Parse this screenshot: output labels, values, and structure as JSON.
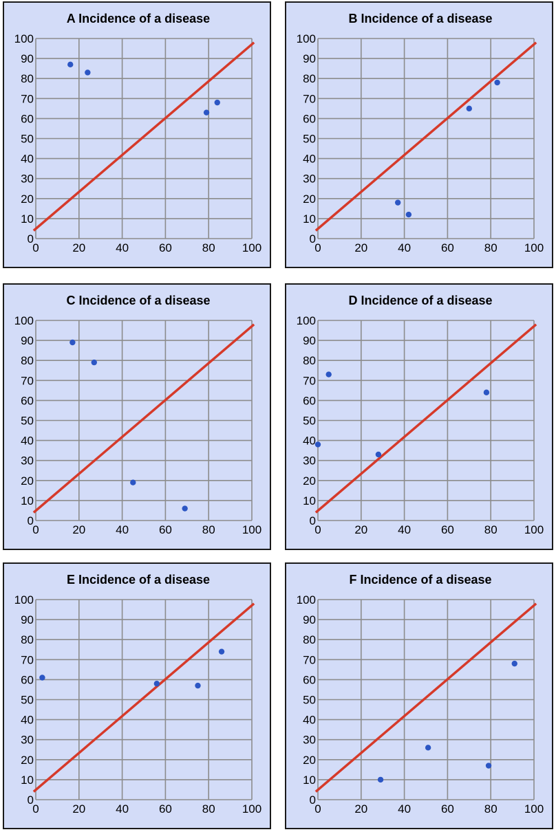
{
  "chart_data": [
    {
      "type": "scatter",
      "panel": "A",
      "title": "A Incidence of a disease",
      "xlim": [
        0,
        100
      ],
      "ylim": [
        0,
        100
      ],
      "x_ticks": [
        "0",
        "20",
        "40",
        "60",
        "80",
        "100"
      ],
      "y_ticks": [
        "0",
        "10",
        "20",
        "30",
        "40",
        "50",
        "60",
        "70",
        "80",
        "90",
        "100"
      ],
      "grid": true,
      "points": [
        {
          "x": 16,
          "y": 87
        },
        {
          "x": 24,
          "y": 83
        },
        {
          "x": 79,
          "y": 63
        },
        {
          "x": 84,
          "y": 68
        }
      ],
      "line": {
        "x": [
          -1,
          101
        ],
        "y": [
          4,
          98
        ],
        "color": "#d63a2a"
      },
      "marker_color": "#2c56c4"
    },
    {
      "type": "scatter",
      "panel": "B",
      "title": "B Incidence of a disease",
      "xlim": [
        0,
        100
      ],
      "ylim": [
        0,
        100
      ],
      "x_ticks": [
        "0",
        "20",
        "40",
        "60",
        "80",
        "100"
      ],
      "y_ticks": [
        "0",
        "10",
        "20",
        "30",
        "40",
        "50",
        "60",
        "70",
        "80",
        "90",
        "100"
      ],
      "grid": true,
      "points": [
        {
          "x": 37,
          "y": 18
        },
        {
          "x": 42,
          "y": 12
        },
        {
          "x": 70,
          "y": 65
        },
        {
          "x": 83,
          "y": 78
        }
      ],
      "line": {
        "x": [
          -1,
          101
        ],
        "y": [
          4,
          98
        ],
        "color": "#d63a2a"
      },
      "marker_color": "#2c56c4"
    },
    {
      "type": "scatter",
      "panel": "C",
      "title": "C Incidence of a disease",
      "xlim": [
        0,
        100
      ],
      "ylim": [
        0,
        100
      ],
      "x_ticks": [
        "0",
        "20",
        "40",
        "60",
        "80",
        "100"
      ],
      "y_ticks": [
        "0",
        "10",
        "20",
        "30",
        "40",
        "50",
        "60",
        "70",
        "80",
        "90",
        "100"
      ],
      "grid": true,
      "points": [
        {
          "x": 17,
          "y": 89
        },
        {
          "x": 27,
          "y": 79
        },
        {
          "x": 45,
          "y": 19
        },
        {
          "x": 69,
          "y": 6
        }
      ],
      "line": {
        "x": [
          -1,
          101
        ],
        "y": [
          4,
          98
        ],
        "color": "#d63a2a"
      },
      "marker_color": "#2c56c4"
    },
    {
      "type": "scatter",
      "panel": "D",
      "title": "D Incidence of a disease",
      "xlim": [
        0,
        100
      ],
      "ylim": [
        0,
        100
      ],
      "x_ticks": [
        "0",
        "20",
        "40",
        "60",
        "80",
        "100"
      ],
      "y_ticks": [
        "0",
        "10",
        "20",
        "30",
        "40",
        "50",
        "60",
        "70",
        "80",
        "90",
        "100"
      ],
      "grid": true,
      "points": [
        {
          "x": 0,
          "y": 38
        },
        {
          "x": 5,
          "y": 73
        },
        {
          "x": 28,
          "y": 33
        },
        {
          "x": 78,
          "y": 64
        }
      ],
      "line": {
        "x": [
          -1,
          101
        ],
        "y": [
          4,
          98
        ],
        "color": "#d63a2a"
      },
      "marker_color": "#2c56c4"
    },
    {
      "type": "scatter",
      "panel": "E",
      "title": "E Incidence of a disease",
      "xlim": [
        0,
        100
      ],
      "ylim": [
        0,
        100
      ],
      "x_ticks": [
        "0",
        "20",
        "40",
        "60",
        "80",
        "100"
      ],
      "y_ticks": [
        "0",
        "10",
        "20",
        "30",
        "40",
        "50",
        "60",
        "70",
        "80",
        "90",
        "100"
      ],
      "grid": true,
      "points": [
        {
          "x": 3,
          "y": 61
        },
        {
          "x": 56,
          "y": 58
        },
        {
          "x": 75,
          "y": 57
        },
        {
          "x": 86,
          "y": 74
        }
      ],
      "line": {
        "x": [
          -1,
          101
        ],
        "y": [
          4,
          98
        ],
        "color": "#d63a2a"
      },
      "marker_color": "#2c56c4"
    },
    {
      "type": "scatter",
      "panel": "F",
      "title": "F Incidence of a disease",
      "xlim": [
        0,
        100
      ],
      "ylim": [
        0,
        100
      ],
      "x_ticks": [
        "0",
        "20",
        "40",
        "60",
        "80",
        "100"
      ],
      "y_ticks": [
        "0",
        "10",
        "20",
        "30",
        "40",
        "50",
        "60",
        "70",
        "80",
        "90",
        "100"
      ],
      "grid": true,
      "points": [
        {
          "x": 29,
          "y": 10
        },
        {
          "x": 51,
          "y": 26
        },
        {
          "x": 79,
          "y": 17
        },
        {
          "x": 91,
          "y": 68
        }
      ],
      "line": {
        "x": [
          -1,
          101
        ],
        "y": [
          4,
          98
        ],
        "color": "#d63a2a"
      },
      "marker_color": "#2c56c4"
    }
  ]
}
